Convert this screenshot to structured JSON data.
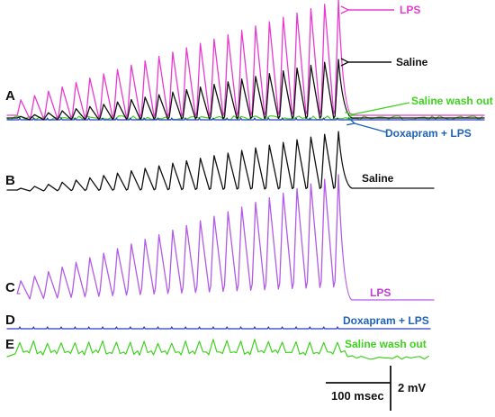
{
  "panels": [
    {
      "letter": "A"
    },
    {
      "letter": "B",
      "label": "Saline"
    },
    {
      "letter": "C",
      "label": "LPS"
    },
    {
      "letter": "D",
      "label": "Doxapram + LPS"
    },
    {
      "letter": "E",
      "label": "Saline wash out"
    }
  ],
  "overlay_labels": {
    "lps": "LPS",
    "saline": "Saline",
    "saline_wash_out": "Saline wash out",
    "doxapram_lps": "Doxapram + LPS"
  },
  "scale_bar": {
    "time_label": "100 msec",
    "voltage_label": "2 mV"
  },
  "colors": {
    "lps": "#e83ad3",
    "lps_panel": "#b35ae8",
    "saline": "#111111",
    "saline_wash_out": "#3fd21f",
    "doxapram_lps": "#2a3fc8",
    "lps_label_panel": "#c43ad9",
    "doxapram_label": "#1e63b8"
  }
}
